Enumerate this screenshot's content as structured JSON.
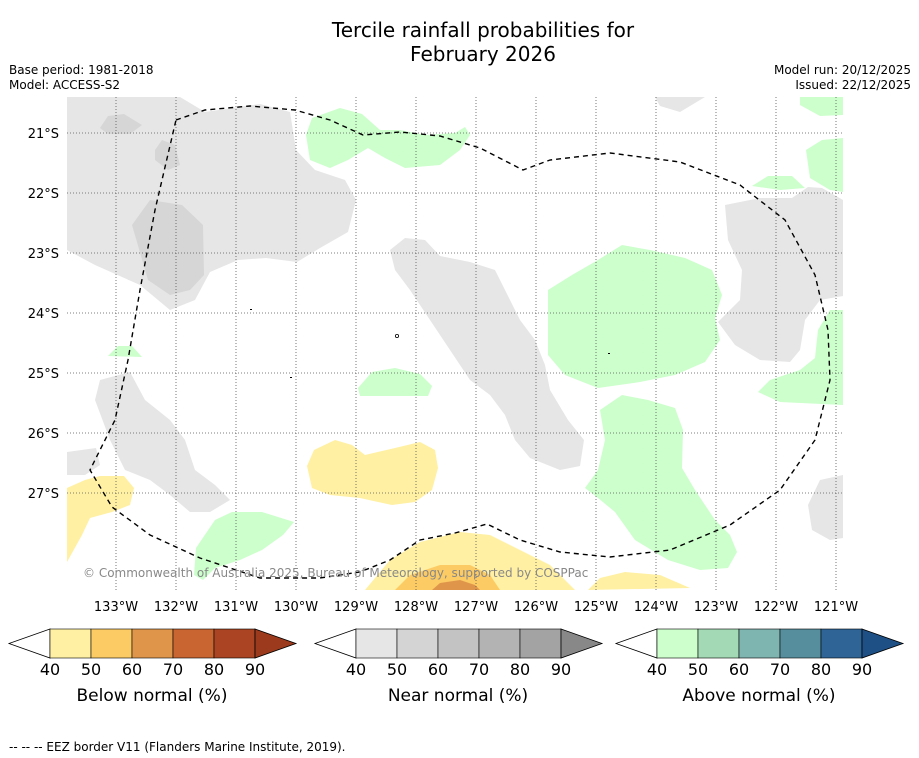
{
  "title": {
    "line1": "Tercile rainfall probabilities for",
    "line2": "February 2026"
  },
  "meta_left": {
    "base_period": "Base period: 1981-2018",
    "model": "Model: ACCESS-S2"
  },
  "meta_right": {
    "model_run": "Model run: 20/12/2025",
    "issued": "Issued: 22/12/2025"
  },
  "axes": {
    "lat_labels": [
      "21°S",
      "22°S",
      "23°S",
      "24°S",
      "25°S",
      "26°S",
      "27°S"
    ],
    "lon_labels": [
      "133°W",
      "132°W",
      "131°W",
      "130°W",
      "129°W",
      "128°W",
      "127°W",
      "126°W",
      "125°W",
      "124°W",
      "123°W",
      "122°W",
      "121°W"
    ]
  },
  "copyright": "© Commonwealth of Australia 2025, Bureau of Meteorology, supported by COSPPac",
  "colorbars": [
    {
      "label": "Below normal (%)",
      "ticks": [
        "40",
        "50",
        "60",
        "70",
        "80",
        "90"
      ],
      "colors": [
        "#fff0a3",
        "#fccb64",
        "#e0964a",
        "#c86530",
        "#aa4422"
      ],
      "arrow_color": "#9b3a1c"
    },
    {
      "label": "Near normal (%)",
      "ticks": [
        "40",
        "50",
        "60",
        "70",
        "80",
        "90"
      ],
      "colors": [
        "#e6e6e6",
        "#d4d4d4",
        "#c3c3c3",
        "#b3b3b3",
        "#a3a3a3"
      ],
      "arrow_color": "#888888"
    },
    {
      "label": "Above normal (%)",
      "ticks": [
        "40",
        "50",
        "60",
        "70",
        "80",
        "90"
      ],
      "colors": [
        "#ccffcc",
        "#a3d9b5",
        "#7fb5b0",
        "#568e9e",
        "#2e6496"
      ],
      "arrow_color": "#1e4f85"
    }
  ],
  "footnote": "--  --  -- EEZ border V11 (Flanders Marine Institute, 2019).",
  "colors": {
    "near_normal": "#e6e6e6",
    "near_normal_dark": "#d6d6d6",
    "above_normal": "#ccffcc",
    "below_normal": "#fff0a3",
    "below_normal_50": "#fccb64",
    "below_normal_60": "#e0964a"
  }
}
